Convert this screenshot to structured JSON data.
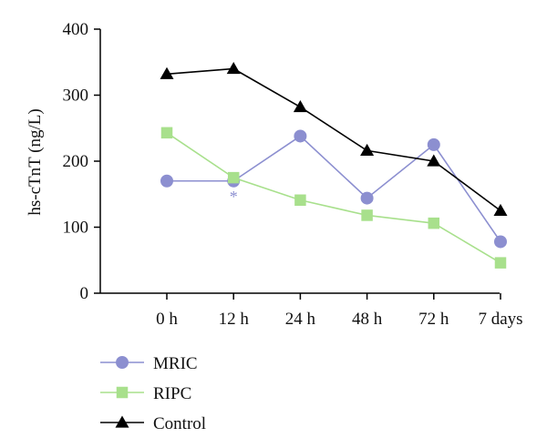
{
  "chart_data": {
    "type": "line",
    "categories": [
      "0 h",
      "12 h",
      "24 h",
      "48 h",
      "72 h",
      "7 days"
    ],
    "ylabel": "hs-cTnT (ng/L)",
    "xlabel": "",
    "ylim": [
      0,
      400
    ],
    "yticks": [
      0,
      100,
      200,
      300,
      400
    ],
    "grid": false,
    "legend_position": "bottom-left",
    "series": [
      {
        "name": "MRIC",
        "marker": "circle",
        "color": "#8c8fd0",
        "values": [
          170,
          170,
          238,
          144,
          225,
          78
        ]
      },
      {
        "name": "RIPC",
        "marker": "square",
        "color": "#a8e08c",
        "values": [
          243,
          175,
          141,
          118,
          106,
          46
        ]
      },
      {
        "name": "Control",
        "marker": "triangle",
        "color": "#000000",
        "values": [
          332,
          340,
          282,
          216,
          200,
          125
        ]
      }
    ],
    "annotations": [
      {
        "text": "*",
        "category": "12 h",
        "color": "#8c8fd0"
      }
    ]
  }
}
